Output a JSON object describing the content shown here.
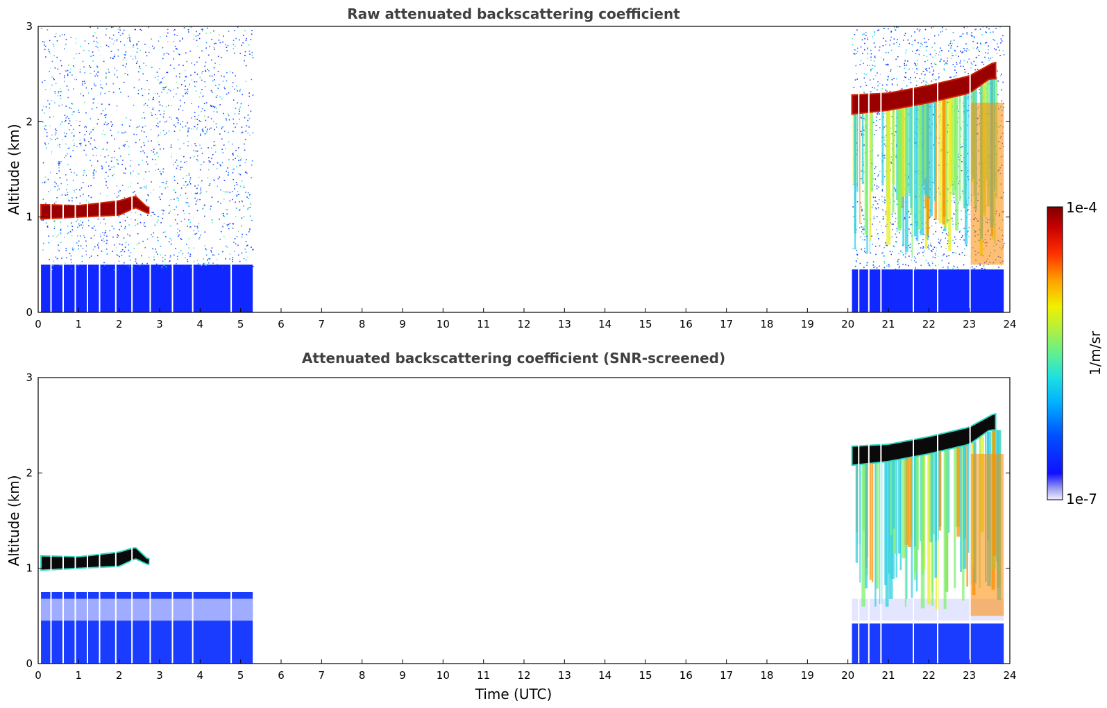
{
  "chart_data": [
    {
      "type": "heatmap",
      "title": "Raw attenuated backscattering coefficient",
      "xlabel": "",
      "ylabel": "Altitude (km)",
      "xlim": [
        0,
        24
      ],
      "ylim": [
        0,
        3
      ],
      "xticks": [
        "0",
        "1",
        "2",
        "3",
        "4",
        "5",
        "6",
        "7",
        "8",
        "9",
        "10",
        "11",
        "12",
        "13",
        "14",
        "15",
        "16",
        "17",
        "18",
        "19",
        "20",
        "21",
        "22",
        "23",
        "24"
      ],
      "yticks": [
        "0",
        "1",
        "2",
        "3"
      ],
      "data_segments": [
        {
          "start": 0.07,
          "end": 5.3,
          "cloud_base_km": [
            [
              0.1,
              0.98
            ],
            [
              1.0,
              1.0
            ],
            [
              2.0,
              1.02
            ],
            [
              2.4,
              1.1
            ],
            [
              2.7,
              1.04
            ]
          ],
          "cloud_top_km": [
            [
              0.1,
              1.13
            ],
            [
              1.0,
              1.12
            ],
            [
              2.0,
              1.17
            ],
            [
              2.4,
              1.22
            ],
            [
              2.7,
              1.1
            ]
          ]
        },
        {
          "start": 20.1,
          "end": 23.85,
          "cloud_base_km": [
            [
              20.1,
              2.08
            ],
            [
              21.0,
              2.12
            ],
            [
              22.0,
              2.2
            ],
            [
              23.0,
              2.3
            ],
            [
              23.5,
              2.45
            ]
          ],
          "cloud_top_km": [
            [
              20.1,
              2.28
            ],
            [
              21.0,
              2.3
            ],
            [
              22.0,
              2.38
            ],
            [
              23.0,
              2.48
            ],
            [
              23.6,
              2.62
            ]
          ]
        }
      ],
      "screened": false
    },
    {
      "type": "heatmap",
      "title": "Attenuated backscattering coefficient (SNR-screened)",
      "xlabel": "Time (UTC)",
      "ylabel": "Altitude (km)",
      "xlim": [
        0,
        24
      ],
      "ylim": [
        0,
        3
      ],
      "xticks": [
        "0",
        "1",
        "2",
        "3",
        "4",
        "5",
        "6",
        "7",
        "8",
        "9",
        "10",
        "11",
        "12",
        "13",
        "14",
        "15",
        "16",
        "17",
        "18",
        "19",
        "20",
        "21",
        "22",
        "23",
        "24"
      ],
      "yticks": [
        "0",
        "1",
        "2",
        "3"
      ],
      "data_segments": [
        {
          "start": 0.07,
          "end": 5.3,
          "cloud_base_km": [
            [
              0.1,
              0.98
            ],
            [
              1.0,
              1.0
            ],
            [
              2.0,
              1.02
            ],
            [
              2.4,
              1.1
            ],
            [
              2.7,
              1.04
            ]
          ],
          "cloud_top_km": [
            [
              0.1,
              1.13
            ],
            [
              1.0,
              1.12
            ],
            [
              2.0,
              1.17
            ],
            [
              2.4,
              1.22
            ],
            [
              2.7,
              1.1
            ]
          ]
        },
        {
          "start": 20.1,
          "end": 23.85,
          "cloud_base_km": [
            [
              20.1,
              2.08
            ],
            [
              21.0,
              2.12
            ],
            [
              22.0,
              2.2
            ],
            [
              23.0,
              2.3
            ],
            [
              23.5,
              2.45
            ]
          ],
          "cloud_top_km": [
            [
              20.1,
              2.28
            ],
            [
              21.0,
              2.3
            ],
            [
              22.0,
              2.38
            ],
            [
              23.0,
              2.48
            ],
            [
              23.6,
              2.62
            ]
          ]
        }
      ],
      "screened": true
    }
  ],
  "colorbar": {
    "max_label": "1e-4",
    "min_label": "1e-7",
    "unit_label": "1/m/sr",
    "colormap": "jet"
  }
}
